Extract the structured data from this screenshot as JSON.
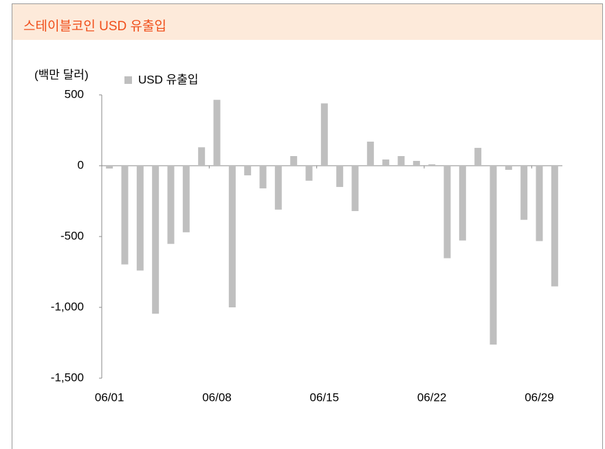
{
  "chart_data": {
    "type": "bar",
    "title": "스테이블코인 USD 유출입",
    "y_axis_label": "(백만 달러)",
    "categories": [
      "06/01",
      null,
      null,
      null,
      null,
      null,
      null,
      "06/08",
      null,
      null,
      null,
      null,
      null,
      null,
      "06/15",
      null,
      null,
      null,
      null,
      null,
      null,
      "06/22",
      null,
      null,
      null,
      null,
      null,
      null,
      "06/29",
      null
    ],
    "series": [
      {
        "name": "USD 유출입",
        "color": "#bfbfbf",
        "values": [
          -20,
          -697,
          -740,
          -1045,
          -552,
          -470,
          130,
          465,
          -1000,
          -68,
          -160,
          -310,
          68,
          -106,
          440,
          -150,
          -320,
          170,
          44,
          68,
          34,
          10,
          -653,
          -528,
          126,
          -1263,
          -29,
          -382,
          -532,
          -852
        ]
      }
    ],
    "ylim": [
      -1500,
      500
    ],
    "yticks": [
      {
        "value": -1500,
        "label": "-1,500"
      },
      {
        "value": -1000,
        "label": "-1,000"
      },
      -500,
      0,
      500
    ]
  }
}
